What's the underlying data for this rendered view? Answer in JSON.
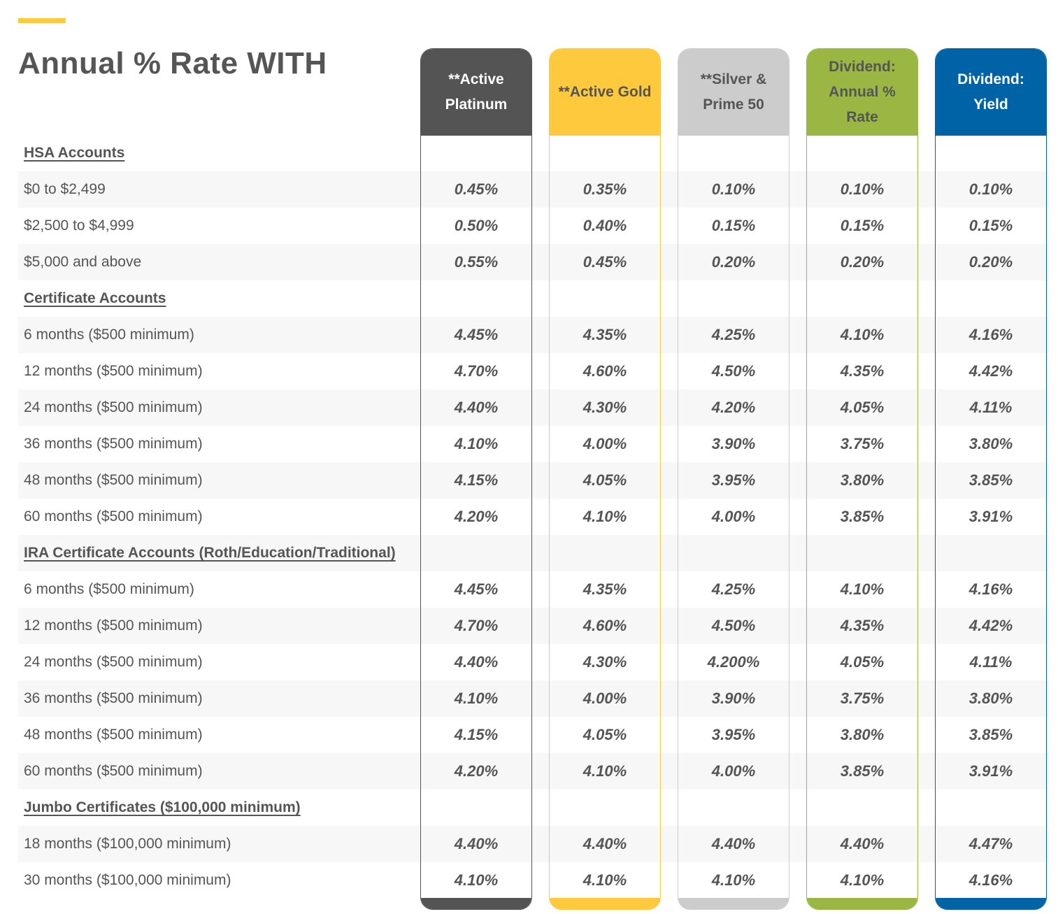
{
  "title": "Annual % Rate WITH",
  "colors": {
    "accent": "#ffc93e",
    "row_shade": "#f7f7f7",
    "text": "#555555"
  },
  "columns": [
    {
      "label": "**Active Platinum",
      "color": "#545454",
      "text_color": "#ffffff"
    },
    {
      "label": "**Active Gold",
      "color": "#ffc93e",
      "text_color": "#555555"
    },
    {
      "label": "**Silver & Prime 50",
      "color": "#cccccc",
      "text_color": "#555555"
    },
    {
      "label": "Dividend: Annual % Rate",
      "color": "#9ab743",
      "text_color": "#555555"
    },
    {
      "label": "Dividend: Yield",
      "color": "#0063a6",
      "text_color": "#ffffff"
    }
  ],
  "rows": [
    {
      "type": "section",
      "label": "HSA Accounts"
    },
    {
      "type": "data",
      "label": "$0 to $2,499",
      "values": [
        "0.45%",
        "0.35%",
        "0.10%",
        "0.10%",
        "0.10%"
      ]
    },
    {
      "type": "data",
      "label": "$2,500 to $4,999",
      "values": [
        "0.50%",
        "0.40%",
        "0.15%",
        "0.15%",
        "0.15%"
      ]
    },
    {
      "type": "data",
      "label": "$5,000 and above",
      "values": [
        "0.55%",
        "0.45%",
        "0.20%",
        "0.20%",
        "0.20%"
      ]
    },
    {
      "type": "section",
      "label": "Certificate Accounts"
    },
    {
      "type": "data",
      "label": "6 months ($500 minimum)",
      "values": [
        "4.45%",
        "4.35%",
        "4.25%",
        "4.10%",
        "4.16%"
      ]
    },
    {
      "type": "data",
      "label": "12 months ($500 minimum)",
      "values": [
        "4.70%",
        "4.60%",
        "4.50%",
        "4.35%",
        "4.42%"
      ]
    },
    {
      "type": "data",
      "label": "24 months ($500 minimum)",
      "values": [
        "4.40%",
        "4.30%",
        "4.20%",
        "4.05%",
        "4.11%"
      ]
    },
    {
      "type": "data",
      "label": "36 months ($500 minimum)",
      "values": [
        "4.10%",
        "4.00%",
        "3.90%",
        "3.75%",
        "3.80%"
      ]
    },
    {
      "type": "data",
      "label": "48 months ($500 minimum)",
      "values": [
        "4.15%",
        "4.05%",
        "3.95%",
        "3.80%",
        "3.85%"
      ]
    },
    {
      "type": "data",
      "label": "60 months ($500 minimum)",
      "values": [
        "4.20%",
        "4.10%",
        "4.00%",
        "3.85%",
        "3.91%"
      ]
    },
    {
      "type": "section",
      "label": "IRA Certificate Accounts (Roth/Education/Traditional)"
    },
    {
      "type": "data",
      "label": "6 months ($500 minimum)",
      "values": [
        "4.45%",
        "4.35%",
        "4.25%",
        "4.10%",
        "4.16%"
      ]
    },
    {
      "type": "data",
      "label": "12 months ($500 minimum)",
      "values": [
        "4.70%",
        "4.60%",
        "4.50%",
        "4.35%",
        "4.42%"
      ]
    },
    {
      "type": "data",
      "label": "24 months ($500 minimum)",
      "values": [
        "4.40%",
        "4.30%",
        "4.200%",
        "4.05%",
        "4.11%"
      ]
    },
    {
      "type": "data",
      "label": "36 months ($500 minimum)",
      "values": [
        "4.10%",
        "4.00%",
        "3.90%",
        "3.75%",
        "3.80%"
      ]
    },
    {
      "type": "data",
      "label": "48 months ($500 minimum)",
      "values": [
        "4.15%",
        "4.05%",
        "3.95%",
        "3.80%",
        "3.85%"
      ]
    },
    {
      "type": "data",
      "label": "60 months ($500 minimum)",
      "values": [
        "4.20%",
        "4.10%",
        "4.00%",
        "3.85%",
        "3.91%"
      ]
    },
    {
      "type": "section",
      "label": "Jumbo Certificates ($100,000 minimum)"
    },
    {
      "type": "data",
      "label": "18 months ($100,000 minimum)",
      "values": [
        "4.40%",
        "4.40%",
        "4.40%",
        "4.40%",
        "4.47%"
      ]
    },
    {
      "type": "data",
      "label": "30 months ($100,000 minimum)",
      "values": [
        "4.10%",
        "4.10%",
        "4.10%",
        "4.10%",
        "4.16%"
      ]
    }
  ]
}
